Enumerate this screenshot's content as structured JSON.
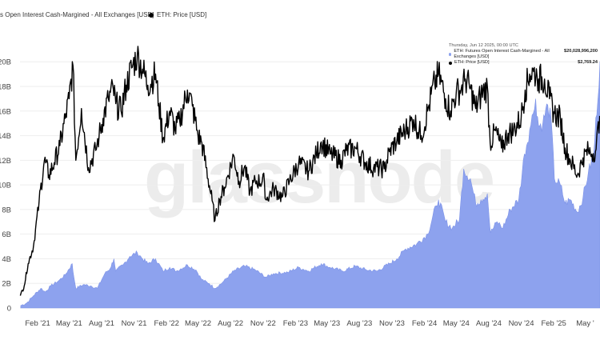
{
  "legend": {
    "oi_label": "s Open Interest Cash-Margined - All Exchanges [USD]",
    "price_label": "ETH: Price [USD]"
  },
  "watermark": "glassnode",
  "tooltip": {
    "date": "Thursday, Jun 12 2025, 00:00 UTC",
    "oi_label": "ETH: Futures Open Interest Cash-Margined - All Exchanges [USD]",
    "oi_value": "$20,028,996,200",
    "price_label": "ETH: Price [USD]",
    "price_value": "$2,769.24"
  },
  "colors": {
    "oi_fill": "#8da2ee",
    "oi_line": "#7d93e8",
    "price_line": "#000000",
    "grid": "#eeeeee"
  },
  "chart_data": {
    "type": "area",
    "title": "",
    "xlabel": "",
    "ylabel": "",
    "x_ticks": [
      "Feb '21",
      "May '21",
      "Aug '21",
      "Nov '21",
      "Feb '22",
      "May '22",
      "Aug '22",
      "Nov '22",
      "Feb '23",
      "May '23",
      "Aug '23",
      "Nov '23",
      "Feb '24",
      "May '24",
      "Aug '24",
      "Nov '24",
      "Feb '25",
      "May '"
    ],
    "y_ticks": [
      "0",
      "2B",
      "4B",
      "6B",
      "8B",
      "10B",
      "12B",
      "14B",
      "16B",
      "18B",
      "20B"
    ],
    "ylim": [
      0,
      20600000000
    ],
    "xlim": [
      "2020-12-13",
      "2025-06-12"
    ],
    "grid": true,
    "series": [
      {
        "name": "ETH: Futures Open Interest Cash-Margined - All Exchanges [USD]",
        "type": "area",
        "points": [
          [
            "2020-12-15",
            0.2
          ],
          [
            "2021-01-01",
            0.4
          ],
          [
            "2021-01-20",
            1.0
          ],
          [
            "2021-02-10",
            1.6
          ],
          [
            "2021-02-22",
            1.3
          ],
          [
            "2021-03-10",
            1.8
          ],
          [
            "2021-04-01",
            2.2
          ],
          [
            "2021-04-20",
            2.7
          ],
          [
            "2021-05-10",
            3.6
          ],
          [
            "2021-05-12",
            3.0
          ],
          [
            "2021-05-20",
            1.6
          ],
          [
            "2021-06-10",
            1.9
          ],
          [
            "2021-07-01",
            1.8
          ],
          [
            "2021-07-20",
            1.6
          ],
          [
            "2021-08-10",
            2.8
          ],
          [
            "2021-08-25",
            3.2
          ],
          [
            "2021-09-05",
            4.0
          ],
          [
            "2021-09-10",
            3.0
          ],
          [
            "2021-10-01",
            3.5
          ],
          [
            "2021-10-20",
            4.2
          ],
          [
            "2021-11-10",
            4.5
          ],
          [
            "2021-11-25",
            4.0
          ],
          [
            "2021-12-10",
            3.6
          ],
          [
            "2022-01-01",
            4.0
          ],
          [
            "2022-01-22",
            3.0
          ],
          [
            "2022-02-10",
            3.3
          ],
          [
            "2022-03-01",
            3.0
          ],
          [
            "2022-04-01",
            3.5
          ],
          [
            "2022-04-25",
            3.1
          ],
          [
            "2022-05-12",
            2.3
          ],
          [
            "2022-06-01",
            2.0
          ],
          [
            "2022-06-18",
            1.6
          ],
          [
            "2022-07-10",
            2.1
          ],
          [
            "2022-08-10",
            3.0
          ],
          [
            "2022-09-10",
            3.4
          ],
          [
            "2022-10-10",
            3.1
          ],
          [
            "2022-11-09",
            2.5
          ],
          [
            "2022-12-01",
            2.8
          ],
          [
            "2023-01-10",
            2.9
          ],
          [
            "2023-02-10",
            3.3
          ],
          [
            "2023-03-10",
            3.0
          ],
          [
            "2023-04-15",
            3.6
          ],
          [
            "2023-05-10",
            3.3
          ],
          [
            "2023-06-15",
            3.0
          ],
          [
            "2023-07-20",
            3.4
          ],
          [
            "2023-08-20",
            3.1
          ],
          [
            "2023-09-20",
            3.0
          ],
          [
            "2023-10-25",
            3.6
          ],
          [
            "2023-11-15",
            4.0
          ],
          [
            "2023-12-10",
            4.8
          ],
          [
            "2024-01-10",
            5.2
          ],
          [
            "2024-02-10",
            6.0
          ],
          [
            "2024-03-05",
            8.3
          ],
          [
            "2024-03-12",
            8.8
          ],
          [
            "2024-04-01",
            7.0
          ],
          [
            "2024-04-20",
            6.5
          ],
          [
            "2024-05-10",
            7.2
          ],
          [
            "2024-05-22",
            11.3
          ],
          [
            "2024-06-10",
            10.5
          ],
          [
            "2024-06-25",
            8.5
          ],
          [
            "2024-07-10",
            8.8
          ],
          [
            "2024-07-28",
            9.3
          ],
          [
            "2024-08-06",
            6.1
          ],
          [
            "2024-08-25",
            7.0
          ],
          [
            "2024-09-10",
            6.5
          ],
          [
            "2024-10-01",
            8.0
          ],
          [
            "2024-10-25",
            8.8
          ],
          [
            "2024-11-10",
            12.5
          ],
          [
            "2024-11-25",
            14.5
          ],
          [
            "2024-12-05",
            15.8
          ],
          [
            "2024-12-12",
            17.0
          ],
          [
            "2024-12-20",
            14.8
          ],
          [
            "2025-01-01",
            15.0
          ],
          [
            "2025-01-15",
            16.5
          ],
          [
            "2025-01-25",
            15.2
          ],
          [
            "2025-02-03",
            10.5
          ],
          [
            "2025-02-20",
            10.0
          ],
          [
            "2025-03-05",
            8.5
          ],
          [
            "2025-03-20",
            8.8
          ],
          [
            "2025-04-09",
            7.8
          ],
          [
            "2025-04-25",
            9.0
          ],
          [
            "2025-05-10",
            11.0
          ],
          [
            "2025-05-25",
            12.5
          ],
          [
            "2025-06-12",
            20.03
          ]
        ]
      },
      {
        "name": "ETH: Price [USD]",
        "type": "line",
        "points": [
          [
            "2020-12-14",
            1.0
          ],
          [
            "2020-12-25",
            1.8
          ],
          [
            "2021-01-05",
            3.6
          ],
          [
            "2021-01-20",
            5.0
          ],
          [
            "2021-02-05",
            8.6
          ],
          [
            "2021-02-20",
            12.0
          ],
          [
            "2021-03-05",
            10.8
          ],
          [
            "2021-03-20",
            11.8
          ],
          [
            "2021-04-05",
            13.2
          ],
          [
            "2021-04-20",
            15.4
          ],
          [
            "2021-05-01",
            17.0
          ],
          [
            "2021-05-12",
            19.7
          ],
          [
            "2021-05-20",
            12.0
          ],
          [
            "2021-06-05",
            16.2
          ],
          [
            "2021-06-25",
            11.4
          ],
          [
            "2021-07-15",
            12.8
          ],
          [
            "2021-07-25",
            14.0
          ],
          [
            "2021-08-05",
            15.4
          ],
          [
            "2021-08-20",
            17.0
          ],
          [
            "2021-09-03",
            17.8
          ],
          [
            "2021-09-10",
            16.6
          ],
          [
            "2021-09-25",
            16.0
          ],
          [
            "2021-10-10",
            18.1
          ],
          [
            "2021-10-25",
            19.5
          ],
          [
            "2021-11-10",
            20.5
          ],
          [
            "2021-11-25",
            19.4
          ],
          [
            "2021-12-10",
            18.1
          ],
          [
            "2022-01-01",
            19.0
          ],
          [
            "2022-01-10",
            16.6
          ],
          [
            "2022-01-22",
            13.8
          ],
          [
            "2022-02-10",
            16.0
          ],
          [
            "2022-02-25",
            14.5
          ],
          [
            "2022-03-10",
            15.2
          ],
          [
            "2022-04-01",
            17.7
          ],
          [
            "2022-04-15",
            16.4
          ],
          [
            "2022-05-01",
            14.0
          ],
          [
            "2022-05-12",
            13.4
          ],
          [
            "2022-06-10",
            8.7
          ],
          [
            "2022-06-18",
            7.1
          ],
          [
            "2022-07-01",
            8.8
          ],
          [
            "2022-07-15",
            9.8
          ],
          [
            "2022-08-10",
            12.4
          ],
          [
            "2022-08-25",
            10.3
          ],
          [
            "2022-09-10",
            11.5
          ],
          [
            "2022-09-25",
            9.4
          ],
          [
            "2022-10-10",
            10.3
          ],
          [
            "2022-11-05",
            10.3
          ],
          [
            "2022-11-09",
            8.8
          ],
          [
            "2022-12-01",
            9.7
          ],
          [
            "2022-12-25",
            9.0
          ],
          [
            "2023-01-15",
            10.3
          ],
          [
            "2023-02-10",
            11.8
          ],
          [
            "2023-03-10",
            11.1
          ],
          [
            "2023-04-01",
            12.5
          ],
          [
            "2023-04-15",
            13.5
          ],
          [
            "2023-05-10",
            12.5
          ],
          [
            "2023-06-10",
            12.0
          ],
          [
            "2023-06-25",
            12.8
          ],
          [
            "2023-07-20",
            13.0
          ],
          [
            "2023-08-18",
            11.8
          ],
          [
            "2023-09-10",
            11.4
          ],
          [
            "2023-10-10",
            11.3
          ],
          [
            "2023-10-25",
            12.7
          ],
          [
            "2023-11-15",
            13.6
          ],
          [
            "2023-12-10",
            14.5
          ],
          [
            "2024-01-01",
            15.3
          ],
          [
            "2024-01-23",
            14.0
          ],
          [
            "2024-02-10",
            16.0
          ],
          [
            "2024-03-01",
            18.3
          ],
          [
            "2024-03-12",
            19.0
          ],
          [
            "2024-04-01",
            17.0
          ],
          [
            "2024-04-15",
            16.0
          ],
          [
            "2024-05-01",
            17.5
          ],
          [
            "2024-05-15",
            17.8
          ],
          [
            "2024-05-27",
            18.6
          ],
          [
            "2024-06-10",
            17.8
          ],
          [
            "2024-06-25",
            16.2
          ],
          [
            "2024-07-10",
            17.3
          ],
          [
            "2024-07-28",
            18.0
          ],
          [
            "2024-08-05",
            13.4
          ],
          [
            "2024-08-20",
            14.4
          ],
          [
            "2024-09-06",
            13.0
          ],
          [
            "2024-09-25",
            14.2
          ],
          [
            "2024-10-10",
            14.4
          ],
          [
            "2024-11-01",
            15.5
          ],
          [
            "2024-11-12",
            17.7
          ],
          [
            "2024-11-25",
            19.0
          ],
          [
            "2024-12-06",
            19.2
          ],
          [
            "2024-12-16",
            18.8
          ],
          [
            "2024-12-20",
            18.6
          ],
          [
            "2025-01-06",
            18.6
          ],
          [
            "2025-01-20",
            17.0
          ],
          [
            "2025-02-03",
            15.8
          ],
          [
            "2025-02-20",
            15.4
          ],
          [
            "2025-03-05",
            13.0
          ],
          [
            "2025-03-20",
            12.0
          ],
          [
            "2025-04-09",
            10.8
          ],
          [
            "2025-04-25",
            12.2
          ],
          [
            "2025-05-10",
            12.8
          ],
          [
            "2025-05-20",
            12.5
          ],
          [
            "2025-06-01",
            12.9
          ],
          [
            "2025-06-11",
            15.6
          ]
        ]
      }
    ]
  }
}
